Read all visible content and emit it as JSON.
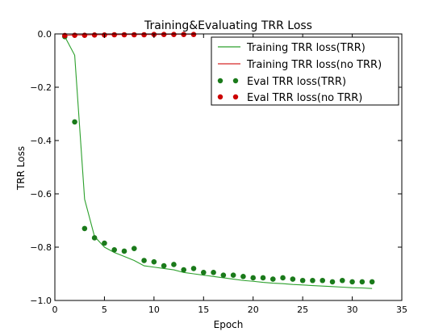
{
  "chart_data": {
    "type": "line",
    "title": "Training&Evaluating TRR Loss",
    "xlabel": "Epoch",
    "ylabel": "TRR Loss",
    "xlim": [
      0,
      35
    ],
    "ylim": [
      -1.0,
      0.0
    ],
    "xticks": [
      0,
      5,
      10,
      15,
      20,
      25,
      30,
      35
    ],
    "xtick_labels": [
      "0",
      "5",
      "10",
      "15",
      "20",
      "25",
      "30",
      "35"
    ],
    "yticks": [
      -1.0,
      -0.8,
      -0.6,
      -0.4,
      -0.2,
      0.0
    ],
    "ytick_labels": [
      "−1.0",
      "−0.8",
      "−0.6",
      "−0.4",
      "−0.2",
      "0.0"
    ],
    "grid": false,
    "legend_position": "top-right",
    "series": [
      {
        "name": "Training TRR loss(TRR)",
        "kind": "line",
        "color": "#2ca02c",
        "x": [
          1,
          2,
          3,
          4,
          5,
          6,
          7,
          8,
          9,
          10,
          11,
          12,
          13,
          14,
          15,
          16,
          17,
          18,
          19,
          20,
          21,
          22,
          23,
          24,
          25,
          26,
          27,
          28,
          29,
          30,
          31,
          32
        ],
        "y": [
          -0.01,
          -0.08,
          -0.62,
          -0.76,
          -0.8,
          -0.82,
          -0.835,
          -0.85,
          -0.87,
          -0.875,
          -0.88,
          -0.885,
          -0.895,
          -0.9,
          -0.905,
          -0.91,
          -0.915,
          -0.92,
          -0.925,
          -0.928,
          -0.932,
          -0.935,
          -0.937,
          -0.94,
          -0.942,
          -0.944,
          -0.946,
          -0.948,
          -0.95,
          -0.952,
          -0.953,
          -0.955
        ]
      },
      {
        "name": "Training TRR loss(no TRR)",
        "kind": "line",
        "color": "#d62728",
        "x": [
          1,
          2,
          3,
          4,
          5,
          6,
          7,
          8,
          9,
          10,
          11,
          12,
          13,
          14
        ],
        "y": [
          -0.005,
          -0.004,
          -0.004,
          -0.003,
          -0.003,
          -0.003,
          -0.002,
          -0.002,
          -0.002,
          -0.002,
          -0.002,
          -0.001,
          -0.001,
          -0.001
        ]
      },
      {
        "name": "Eval TRR loss(TRR)",
        "kind": "scatter",
        "color": "#1a7a1a",
        "x": [
          1,
          2,
          3,
          4,
          5,
          6,
          7,
          8,
          9,
          10,
          11,
          12,
          13,
          14,
          15,
          16,
          17,
          18,
          19,
          20,
          21,
          22,
          23,
          24,
          25,
          26,
          27,
          28,
          29,
          30,
          31,
          32
        ],
        "y": [
          -0.01,
          -0.33,
          -0.73,
          -0.765,
          -0.785,
          -0.81,
          -0.815,
          -0.805,
          -0.85,
          -0.855,
          -0.87,
          -0.865,
          -0.885,
          -0.88,
          -0.895,
          -0.895,
          -0.905,
          -0.905,
          -0.91,
          -0.915,
          -0.915,
          -0.92,
          -0.915,
          -0.92,
          -0.925,
          -0.925,
          -0.925,
          -0.93,
          -0.925,
          -0.93,
          -0.93,
          -0.93
        ]
      },
      {
        "name": "Eval TRR loss(no TRR)",
        "kind": "scatter",
        "color": "#cc0000",
        "x": [
          1,
          2,
          3,
          4,
          5,
          6,
          7,
          8,
          9,
          10,
          11,
          12,
          13,
          14
        ],
        "y": [
          -0.006,
          -0.005,
          -0.005,
          -0.004,
          -0.004,
          -0.003,
          -0.003,
          -0.003,
          -0.003,
          -0.002,
          -0.002,
          -0.002,
          -0.002,
          -0.002
        ]
      }
    ]
  }
}
